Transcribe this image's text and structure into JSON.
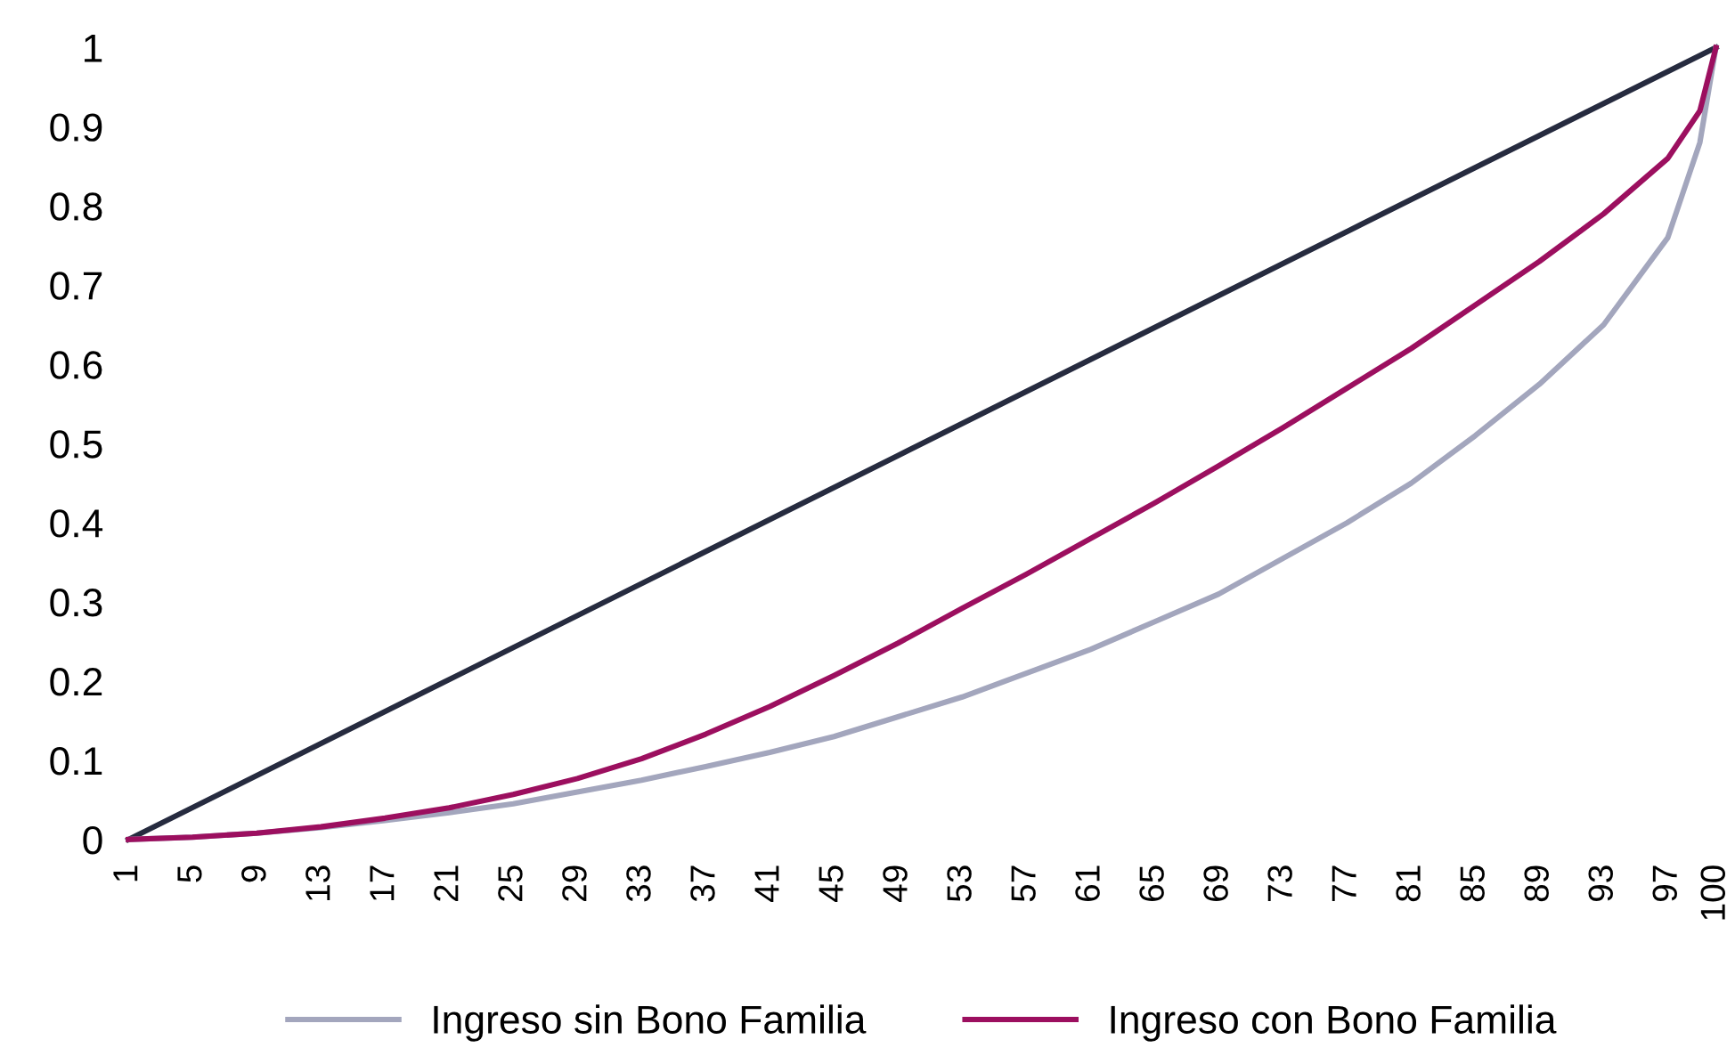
{
  "chart_data": {
    "type": "line",
    "xlim": [
      1,
      100
    ],
    "xticks": [
      1,
      5,
      9,
      13,
      17,
      21,
      25,
      29,
      33,
      37,
      41,
      45,
      49,
      53,
      57,
      61,
      65,
      69,
      73,
      77,
      81,
      85,
      89,
      93,
      97,
      100
    ],
    "ylim": [
      0,
      1
    ],
    "yticks": [
      0,
      0.1,
      0.2,
      0.3,
      0.4,
      0.5,
      0.6,
      0.7,
      0.8,
      0.9,
      1
    ],
    "grid": false,
    "legend": "bottom",
    "marker": "none",
    "line_style": "solid",
    "series": [
      {
        "color": "#262b3f",
        "x": [
          1,
          100
        ],
        "values": [
          0,
          1
        ]
      },
      {
        "name": "Ingreso sin Bono Familia",
        "color": "#a3a6bd",
        "x": [
          1,
          5,
          9,
          13,
          17,
          21,
          25,
          29,
          33,
          37,
          41,
          45,
          49,
          53,
          57,
          61,
          65,
          69,
          73,
          77,
          81,
          85,
          89,
          93,
          97,
          99,
          100
        ],
        "values": [
          0,
          0.003,
          0.008,
          0.015,
          0.024,
          0.034,
          0.045,
          0.06,
          0.075,
          0.092,
          0.11,
          0.13,
          0.155,
          0.18,
          0.21,
          0.24,
          0.275,
          0.31,
          0.355,
          0.4,
          0.45,
          0.51,
          0.575,
          0.65,
          0.76,
          0.88,
          1
        ]
      },
      {
        "name": "Ingreso con Bono Familia",
        "color": "#9c0f5f",
        "x": [
          1,
          5,
          9,
          13,
          17,
          21,
          25,
          29,
          33,
          37,
          41,
          45,
          49,
          53,
          57,
          61,
          65,
          69,
          73,
          77,
          81,
          85,
          89,
          93,
          97,
          99,
          100
        ],
        "values": [
          0,
          0.003,
          0.008,
          0.016,
          0.027,
          0.04,
          0.057,
          0.077,
          0.102,
          0.133,
          0.168,
          0.207,
          0.248,
          0.292,
          0.335,
          0.38,
          0.425,
          0.472,
          0.52,
          0.57,
          0.62,
          0.675,
          0.73,
          0.79,
          0.86,
          0.92,
          1
        ]
      }
    ]
  }
}
